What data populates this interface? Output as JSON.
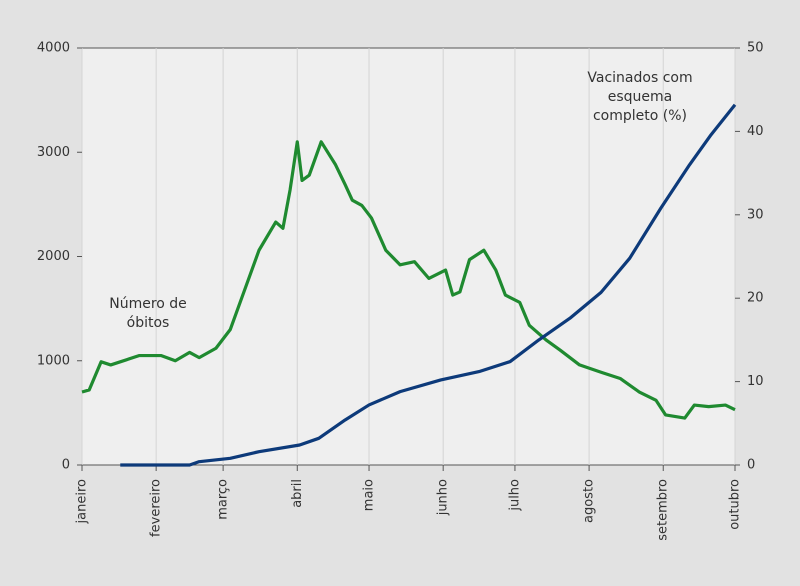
{
  "chart_data": {
    "type": "line",
    "xlim": [
      0,
      273
    ],
    "xticks": [
      {
        "value": 0,
        "label": "janeiro"
      },
      {
        "value": 31,
        "label": "fevereiro"
      },
      {
        "value": 59,
        "label": "março"
      },
      {
        "value": 90,
        "label": "abril"
      },
      {
        "value": 120,
        "label": "maio"
      },
      {
        "value": 151,
        "label": "junho"
      },
      {
        "value": 181,
        "label": "julho"
      },
      {
        "value": 212,
        "label": "agosto"
      },
      {
        "value": 243,
        "label": "setembro"
      },
      {
        "value": 273,
        "label": "outubro"
      }
    ],
    "ylim": [
      0,
      4000
    ],
    "yticks": [
      0,
      1000,
      2000,
      3000,
      4000
    ],
    "y2lim": [
      0,
      50
    ],
    "y2ticks": [
      0,
      10,
      20,
      30,
      40,
      50
    ],
    "grid": true,
    "annotations": [
      {
        "lines": [
          "Número de",
          "óbitos"
        ]
      },
      {
        "lines": [
          "Vacinados com",
          "esquema",
          "completo  (%)"
        ]
      }
    ],
    "series": [
      {
        "name": "Número de óbitos",
        "color": "#1f8a30",
        "x": [
          0,
          3,
          8,
          12,
          16,
          24,
          33,
          39,
          45,
          49,
          56,
          62,
          68,
          74,
          81,
          84,
          87,
          90,
          92,
          95,
          100,
          106,
          110,
          113,
          117,
          121,
          127,
          133,
          139,
          145,
          152,
          155,
          158,
          162,
          168,
          173,
          177,
          183,
          187,
          194,
          200,
          208,
          217,
          225,
          233,
          240,
          244,
          252,
          256,
          262,
          269,
          273
        ],
        "values": [
          700,
          720,
          990,
          960,
          990,
          1050,
          1050,
          1000,
          1080,
          1030,
          1120,
          1300,
          1680,
          2060,
          2330,
          2270,
          2640,
          3100,
          2730,
          2780,
          3100,
          2880,
          2690,
          2540,
          2490,
          2370,
          2060,
          1920,
          1950,
          1790,
          1870,
          1630,
          1660,
          1970,
          2060,
          1870,
          1630,
          1560,
          1340,
          1200,
          1100,
          960,
          890,
          830,
          700,
          620,
          480,
          450,
          575,
          560,
          575,
          530
        ]
      },
      {
        "name": "Vacinados com esquema completo (%)",
        "color": "#0d3a7a",
        "axis": "y2",
        "x": [
          16,
          45,
          49,
          62,
          74,
          91,
          99,
          110,
          120,
          133,
          150,
          166,
          179,
          191,
          204,
          217,
          229,
          242,
          254,
          263,
          273
        ],
        "values": [
          0,
          0,
          0.4,
          0.8,
          1.6,
          2.4,
          3.2,
          5.4,
          7.2,
          8.8,
          10.2,
          11.2,
          12.4,
          15,
          17.6,
          20.7,
          24.8,
          30.8,
          36,
          39.6,
          43.2
        ]
      }
    ]
  }
}
